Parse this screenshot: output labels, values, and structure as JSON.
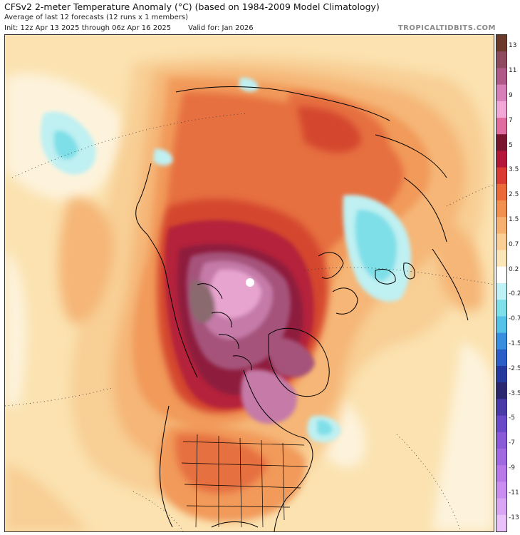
{
  "header": {
    "title": "CFSv2 2-meter Temperature Anomaly (°C) (based on 1984-2009 Model Climatology)",
    "subtitle": "Average of last 12 forecasts (12 runs x 1 members)",
    "init": "Init: 12z Apr 13 2025 through 06z Apr 16 2025",
    "valid": "Valid for: Jan 2026",
    "brand": "TROPICALTIDBITS.COM"
  },
  "colorbar": {
    "labels": [
      "13",
      "11",
      "9",
      "7",
      "5",
      "3.5",
      "2.5",
      "1.5",
      "0.7",
      "0.2",
      "-0.2",
      "-0.7",
      "-1.5",
      "-2.5",
      "-3.5",
      "-5",
      "-7",
      "-9",
      "-11",
      "-13"
    ],
    "colors": [
      "#6b3a2a",
      "#8e4a5e",
      "#b05a8a",
      "#d77fb8",
      "#f2a9d8",
      "#e06ca0",
      "#7a1530",
      "#b5173a",
      "#d93a32",
      "#ea6a3a",
      "#f29050",
      "#f6b070",
      "#f9cf95",
      "#fbe6b8",
      "#ffffff",
      "#bff2f4",
      "#7fe0ea",
      "#55c3e8",
      "#3a8ee0",
      "#2a5fc8",
      "#243a9e",
      "#2a2670",
      "#4a3aa8",
      "#6a4ac8",
      "#8a5ad8",
      "#a06ae0",
      "#b87ae8",
      "#c98ef0",
      "#d9a6f4",
      "#e8c2f8"
    ]
  },
  "map": {
    "colors": {
      "ocean_base": "#fbe2b0",
      "warm1": "#f8cf95",
      "warm2": "#f5b677",
      "warm3": "#f19a5a",
      "warm4": "#e6703f",
      "warm5": "#d4462f",
      "warm6": "#b4233a",
      "warm7": "#8e1f3e",
      "hot1": "#a5527a",
      "hot2": "#c57aa8",
      "hot3": "#e7a4cf",
      "hot4": "#8a6a6e",
      "cool1": "#bff0f2",
      "cool2": "#7fdfe8",
      "cool3": "#5ab9e6",
      "land_line": "#000000"
    }
  }
}
